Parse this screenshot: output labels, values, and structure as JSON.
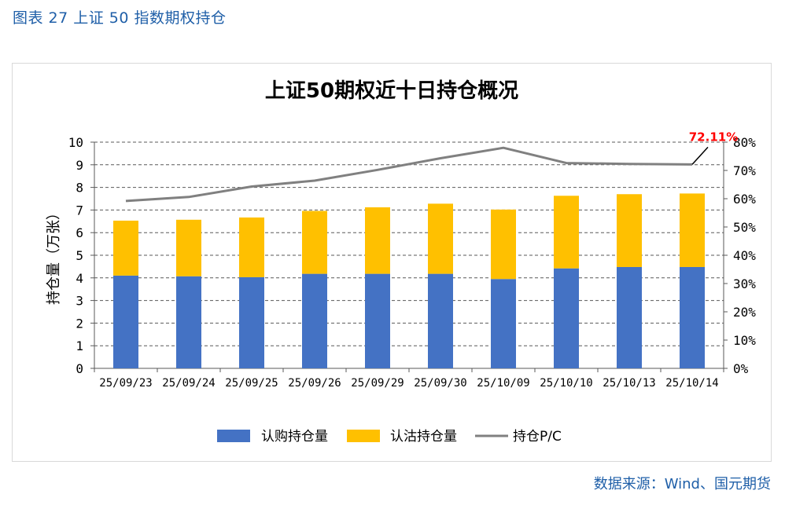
{
  "figure_title": "图表 27 上证 50 指数期权持仓",
  "source_text": "数据来源：Wind、国元期货",
  "colors": {
    "call": "#4472C4",
    "put": "#FFC000",
    "pc_line": "#808080",
    "highlight": "#FF0000",
    "title_blue": "#1f5fa8"
  },
  "chart_data": {
    "type": "bar",
    "title": "上证50期权近十日持仓概况",
    "ylabel": "持仓量（万张）",
    "ylim": [
      0,
      10
    ],
    "y_ticks": [
      "0",
      "1",
      "2",
      "3",
      "4",
      "5",
      "6",
      "7",
      "8",
      "9",
      "10"
    ],
    "y2lim": [
      0,
      80
    ],
    "y2_ticks": [
      "0%",
      "10%",
      "20%",
      "30%",
      "40%",
      "50%",
      "60%",
      "70%",
      "80%"
    ],
    "grid": true,
    "legend_position": "bottom",
    "categories": [
      "25/09/23",
      "25/09/24",
      "25/09/25",
      "25/09/26",
      "25/09/29",
      "25/09/30",
      "25/10/09",
      "25/10/10",
      "25/10/13",
      "25/10/14"
    ],
    "series": [
      {
        "name": "认购持仓量",
        "type": "bar",
        "stack": "total",
        "values": [
          4.1,
          4.07,
          4.03,
          4.18,
          4.18,
          4.18,
          3.95,
          4.42,
          4.48,
          4.48
        ]
      },
      {
        "name": "认沽持仓量",
        "type": "bar",
        "stack": "total",
        "values": [
          2.43,
          2.5,
          2.64,
          2.78,
          2.94,
          3.1,
          3.07,
          3.21,
          3.22,
          3.25
        ]
      },
      {
        "name": "持仓P/C",
        "type": "line",
        "axis": "right",
        "values": [
          59.2,
          60.6,
          64.3,
          66.4,
          70.2,
          74.3,
          78.0,
          72.6,
          72.3,
          72.11
        ]
      }
    ],
    "annotation": {
      "text": "72.11%",
      "category_index": 9
    }
  }
}
